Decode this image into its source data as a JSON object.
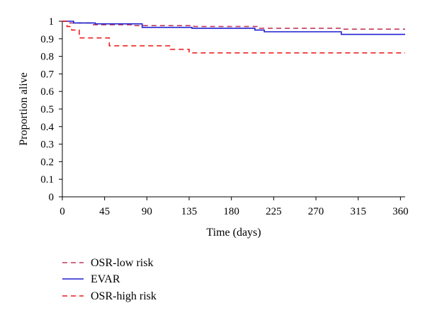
{
  "chart_data": {
    "type": "line",
    "step": true,
    "xlabel": "Time (days)",
    "ylabel": "Proportion alive",
    "xlim": [
      0,
      365
    ],
    "ylim": [
      0,
      1
    ],
    "xticks": [
      0,
      45,
      90,
      135,
      180,
      225,
      270,
      315,
      360
    ],
    "yticks": [
      0,
      0.1,
      0.2,
      0.3,
      0.4,
      0.5,
      0.6,
      0.7,
      0.8,
      0.9,
      1
    ],
    "ytick_labels": [
      "0",
      "0.1",
      "0.2",
      "0.3",
      "0.4",
      "0.5",
      "0.6",
      "0.7",
      "0.8",
      "0.9",
      "1"
    ],
    "grid": false,
    "legend_position": "bottom-left, below plot",
    "series": [
      {
        "name": "OSR-low risk",
        "color": "#c0395a",
        "line_style": "dashed",
        "x": [
          0,
          8,
          30,
          75,
          140,
          210,
          297,
          365
        ],
        "y": [
          1,
          0.99,
          0.98,
          0.975,
          0.97,
          0.96,
          0.955,
          0.955
        ]
      },
      {
        "name": "EVAR",
        "color": "#1f1fd1",
        "line_style": "solid",
        "x": [
          0,
          12,
          35,
          85,
          138,
          205,
          215,
          297,
          365
        ],
        "y": [
          1,
          0.99,
          0.985,
          0.965,
          0.96,
          0.95,
          0.94,
          0.925,
          0.925
        ]
      },
      {
        "name": "OSR-high risk",
        "color": "#ee1c1c",
        "line_style": "dashed",
        "x": [
          0,
          5,
          10,
          18,
          50,
          115,
          135,
          365
        ],
        "y": [
          1,
          0.97,
          0.95,
          0.905,
          0.86,
          0.84,
          0.82,
          0.82
        ]
      }
    ]
  }
}
